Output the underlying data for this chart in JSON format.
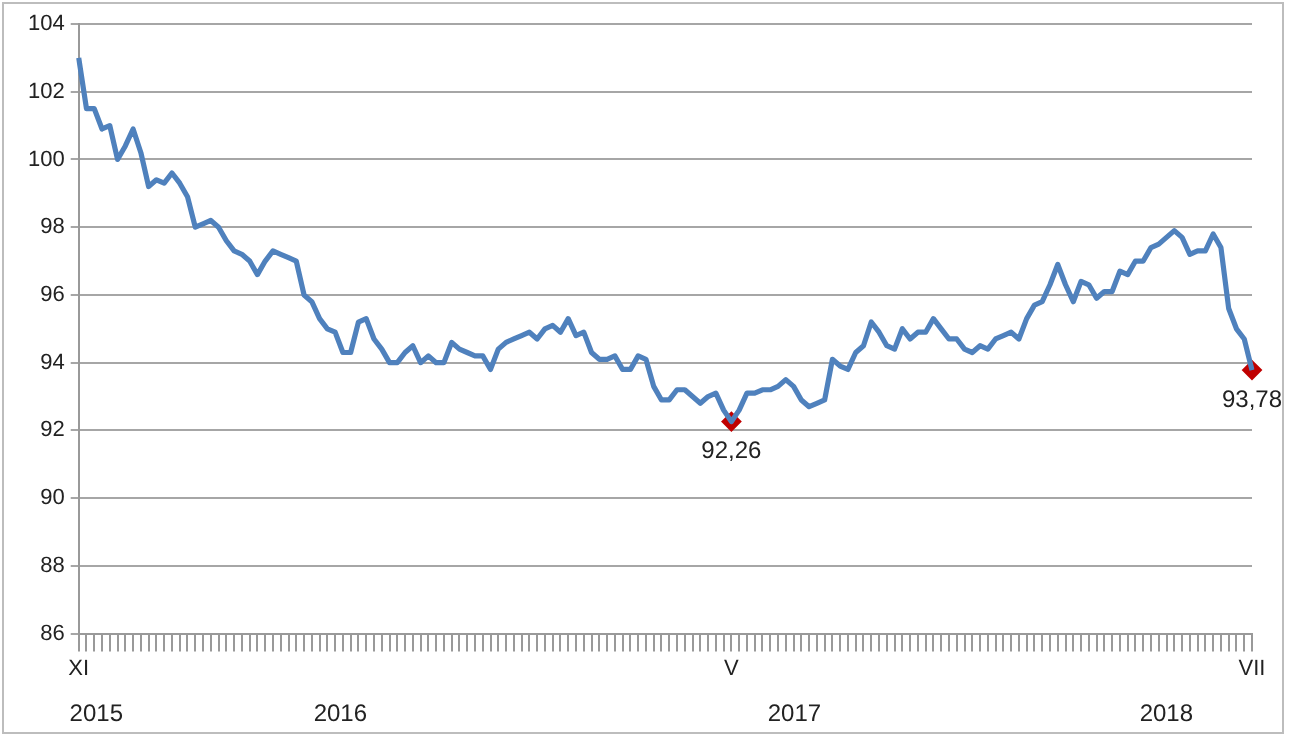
{
  "chart_data": {
    "type": "line",
    "categories": [
      "XI",
      null,
      null,
      null,
      null,
      null,
      null,
      null,
      null,
      null,
      null,
      null,
      null,
      null,
      null,
      null,
      null,
      null,
      null,
      null,
      null,
      null,
      null,
      null,
      null,
      null,
      null,
      null,
      null,
      null,
      null,
      null,
      null,
      null,
      null,
      null,
      null,
      null,
      null,
      null,
      null,
      null,
      null,
      null,
      null,
      null,
      null,
      null,
      null,
      null,
      null,
      null,
      null,
      null,
      null,
      null,
      null,
      null,
      null,
      null,
      null,
      null,
      null,
      null,
      null,
      null,
      null,
      null,
      null,
      null,
      null,
      null,
      null,
      null,
      null,
      null,
      null,
      null,
      null,
      null,
      null,
      null,
      null,
      null,
      "V",
      null,
      null,
      null,
      null,
      null,
      null,
      null,
      null,
      null,
      null,
      null,
      null,
      null,
      null,
      null,
      null,
      null,
      null,
      null,
      null,
      null,
      null,
      null,
      null,
      null,
      null,
      null,
      null,
      null,
      null,
      null,
      null,
      null,
      null,
      null,
      null,
      null,
      null,
      null,
      null,
      null,
      null,
      null,
      null,
      null,
      null,
      null,
      null,
      null,
      null,
      null,
      null,
      null,
      null,
      null,
      null,
      null,
      null,
      null,
      null,
      null,
      null,
      null,
      null,
      null,
      null,
      "VII"
    ],
    "series": [
      {
        "color": "#4f81bd",
        "values": [
          103.0,
          101.5,
          101.5,
          100.9,
          101.0,
          100.0,
          100.4,
          100.9,
          100.2,
          99.2,
          99.4,
          99.3,
          99.6,
          99.3,
          98.9,
          98.0,
          98.1,
          98.2,
          98.0,
          97.6,
          97.3,
          97.2,
          97.0,
          96.6,
          97.0,
          97.3,
          97.2,
          97.1,
          97.0,
          96.0,
          95.8,
          95.3,
          95.0,
          94.9,
          94.3,
          94.3,
          95.2,
          95.3,
          94.7,
          94.4,
          94.0,
          94.0,
          94.3,
          94.5,
          94.0,
          94.2,
          94.0,
          94.0,
          94.6,
          94.4,
          94.3,
          94.2,
          94.2,
          93.8,
          94.4,
          94.6,
          94.7,
          94.8,
          94.9,
          94.7,
          95.0,
          95.1,
          94.9,
          95.3,
          94.8,
          94.9,
          94.3,
          94.1,
          94.1,
          94.2,
          93.8,
          93.8,
          94.2,
          94.1,
          93.3,
          92.9,
          92.9,
          93.2,
          93.2,
          93.0,
          92.8,
          93.0,
          93.1,
          92.6,
          92.26,
          92.6,
          93.1,
          93.1,
          93.2,
          93.2,
          93.3,
          93.5,
          93.3,
          92.9,
          92.7,
          92.8,
          92.9,
          94.1,
          93.9,
          93.8,
          94.3,
          94.5,
          95.2,
          94.9,
          94.5,
          94.4,
          95.0,
          94.7,
          94.9,
          94.9,
          95.3,
          95.0,
          94.7,
          94.7,
          94.4,
          94.3,
          94.5,
          94.4,
          94.7,
          94.8,
          94.9,
          94.7,
          95.3,
          95.7,
          95.8,
          96.3,
          96.9,
          96.3,
          95.8,
          96.4,
          96.3,
          95.9,
          96.1,
          96.1,
          96.7,
          96.6,
          97.0,
          97.0,
          97.4,
          97.5,
          97.7,
          97.9,
          97.7,
          97.2,
          97.3,
          97.3,
          97.8,
          97.4,
          95.6,
          95.0,
          94.7,
          93.78
        ]
      },
      {
        "type": "scatter",
        "color": "#c00000",
        "marker": "diamond",
        "x": [
          "V",
          "VII"
        ],
        "values": [
          92.26,
          93.78
        ]
      }
    ],
    "ylim": [
      86,
      104
    ],
    "yticks": [
      86,
      88,
      90,
      92,
      94,
      96,
      98,
      100,
      102,
      104
    ],
    "grid": "y",
    "legend": false,
    "marker": "none",
    "annotations": [
      {
        "text": "92,26",
        "x": "V",
        "y": 92.26
      },
      {
        "text": "93,78",
        "x": "VII",
        "y": 93.78
      },
      "2015",
      "2016",
      "2017",
      "2018"
    ]
  }
}
